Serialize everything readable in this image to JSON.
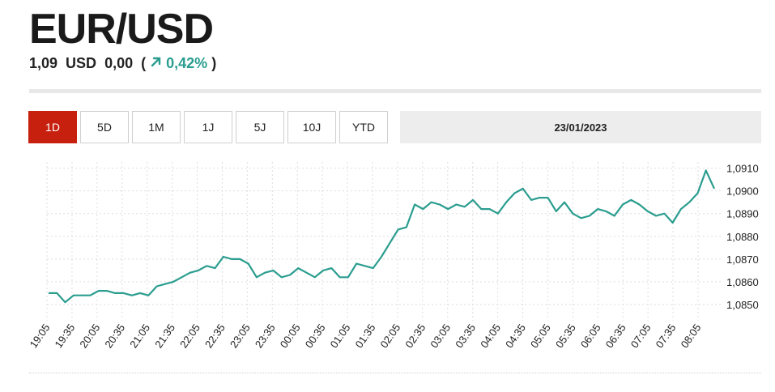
{
  "header": {
    "title": "EUR/USD",
    "price": "1,09",
    "currency": "USD",
    "change": "0,00",
    "paren_open": "(",
    "paren_close": ")",
    "change_pct": "0,42%",
    "trend_icon": "arrow-up-right-icon",
    "trend_color": "#2a9d8f"
  },
  "ranges": {
    "items": [
      "1D",
      "5D",
      "1M",
      "1J",
      "5J",
      "10J",
      "YTD"
    ],
    "active": "1D",
    "active_color": "#c8200f"
  },
  "date_label": "23/01/2023",
  "chart_data": {
    "type": "line",
    "title": "",
    "xlabel": "",
    "ylabel": "",
    "line_color": "#2a9d8f",
    "grid": true,
    "ylim": [
      1.0845,
      1.0912
    ],
    "ytick_labels": [
      "1,0850",
      "1,0860",
      "1,0870",
      "1,0880",
      "1,0890",
      "1,0900",
      "1,0910"
    ],
    "ytick_values": [
      1.085,
      1.086,
      1.087,
      1.088,
      1.089,
      1.09,
      1.091
    ],
    "xtick_labels": [
      "19:05",
      "19:35",
      "20:05",
      "20:35",
      "21:05",
      "21:35",
      "22:05",
      "22:35",
      "23:05",
      "23:35",
      "00:05",
      "00:35",
      "01:05",
      "01:35",
      "02:05",
      "02:35",
      "03:05",
      "03:35",
      "04:05",
      "04:35",
      "05:05",
      "05:35",
      "06:05",
      "06:35",
      "07:05",
      "07:35",
      "08:05"
    ],
    "series": [
      {
        "values": [
          1.0855,
          1.0855,
          1.0851,
          1.0854,
          1.0854,
          1.0854,
          1.0856,
          1.0856,
          1.0855,
          1.0855,
          1.0854,
          1.0855,
          1.0854,
          1.0858,
          1.0859,
          1.086,
          1.0862,
          1.0864,
          1.0865,
          1.0867,
          1.0866,
          1.0871,
          1.087,
          1.087,
          1.0868,
          1.0862,
          1.0864,
          1.0865,
          1.0862,
          1.0863,
          1.0866,
          1.0864,
          1.0862,
          1.0865,
          1.0866,
          1.0862,
          1.0862,
          1.0868,
          1.0867,
          1.0866,
          1.0871,
          1.0877,
          1.0883,
          1.0884,
          1.0894,
          1.0892,
          1.0895,
          1.0894,
          1.0892,
          1.0894,
          1.0893,
          1.0896,
          1.0892,
          1.0892,
          1.089,
          1.0895,
          1.0899,
          1.0901,
          1.0896,
          1.0897,
          1.0897,
          1.0891,
          1.0895,
          1.089,
          1.0888,
          1.0889,
          1.0892,
          1.0891,
          1.0889,
          1.0894,
          1.0896,
          1.0894,
          1.0891,
          1.0889,
          1.089,
          1.0886,
          1.0892,
          1.0895,
          1.0899,
          1.0909,
          1.0901
        ]
      }
    ]
  }
}
